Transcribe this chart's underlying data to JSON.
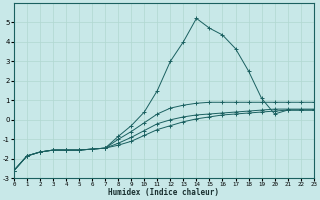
{
  "xlabel": "Humidex (Indice chaleur)",
  "background_color": "#c8e8e8",
  "grid_color": "#b0d8d0",
  "line_color": "#1a6060",
  "xlim": [
    0,
    23
  ],
  "ylim": [
    -3,
    6
  ],
  "yticks": [
    -3,
    -2,
    -1,
    0,
    1,
    2,
    3,
    4,
    5
  ],
  "xticks": [
    0,
    1,
    2,
    3,
    4,
    5,
    6,
    7,
    8,
    9,
    10,
    11,
    12,
    13,
    14,
    15,
    16,
    17,
    18,
    19,
    20,
    21,
    22,
    23
  ],
  "line1_x": [
    0,
    1,
    2,
    3,
    4,
    5,
    6,
    7,
    8,
    9,
    10,
    11,
    12,
    13,
    14,
    15,
    16,
    17,
    18,
    19,
    20,
    21,
    22,
    23
  ],
  "line1_y": [
    -2.6,
    -1.85,
    -1.65,
    -1.55,
    -1.55,
    -1.55,
    -1.5,
    -1.45,
    -1.3,
    -1.1,
    -0.8,
    -0.5,
    -0.3,
    -0.1,
    0.05,
    0.15,
    0.25,
    0.3,
    0.35,
    0.4,
    0.45,
    0.5,
    0.5,
    0.5
  ],
  "line2_x": [
    0,
    1,
    2,
    3,
    4,
    5,
    6,
    7,
    8,
    9,
    10,
    11,
    12,
    13,
    14,
    15,
    16,
    17,
    18,
    19,
    20,
    21,
    22,
    23
  ],
  "line2_y": [
    -2.6,
    -1.85,
    -1.65,
    -1.55,
    -1.55,
    -1.55,
    -1.5,
    -1.45,
    -1.2,
    -0.9,
    -0.55,
    -0.2,
    0.0,
    0.15,
    0.25,
    0.3,
    0.35,
    0.4,
    0.45,
    0.5,
    0.55,
    0.55,
    0.55,
    0.55
  ],
  "line3_x": [
    0,
    1,
    2,
    3,
    4,
    5,
    6,
    7,
    8,
    9,
    10,
    11,
    12,
    13,
    14,
    15,
    16,
    17,
    18,
    19,
    20,
    21,
    22,
    23
  ],
  "line3_y": [
    -2.6,
    -1.85,
    -1.65,
    -1.55,
    -1.55,
    -1.55,
    -1.5,
    -1.45,
    -1.0,
    -0.6,
    -0.15,
    0.3,
    0.6,
    0.75,
    0.85,
    0.9,
    0.9,
    0.9,
    0.9,
    0.9,
    0.9,
    0.9,
    0.9,
    0.9
  ],
  "line4_x": [
    0,
    1,
    2,
    3,
    4,
    5,
    6,
    7,
    8,
    9,
    10,
    11,
    12,
    13,
    14,
    15,
    16,
    17,
    18,
    19,
    20,
    21,
    22,
    23
  ],
  "line4_y": [
    -2.6,
    -1.85,
    -1.65,
    -1.55,
    -1.55,
    -1.55,
    -1.5,
    -1.45,
    -0.85,
    -0.3,
    0.4,
    1.5,
    3.0,
    4.0,
    5.2,
    4.7,
    4.35,
    3.65,
    2.5,
    1.1,
    0.3,
    0.5,
    0.5,
    0.5
  ]
}
